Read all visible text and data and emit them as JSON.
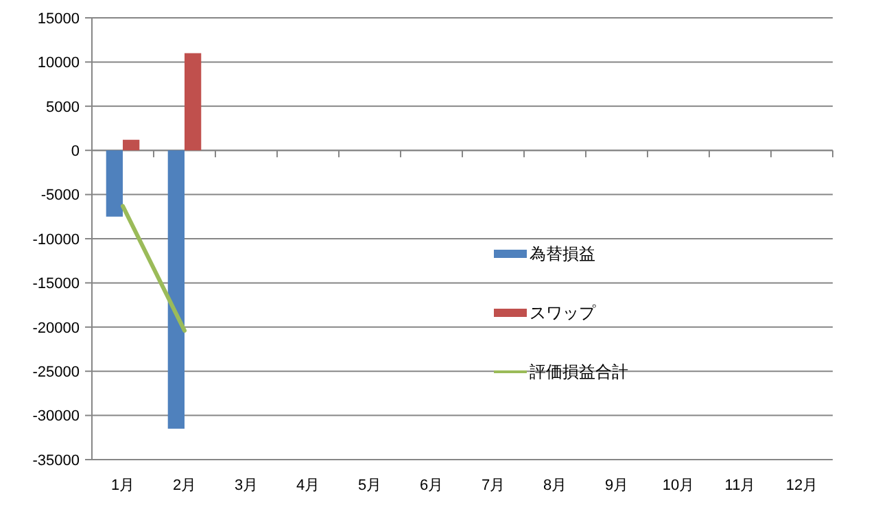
{
  "chart_data": {
    "type": "bar",
    "categories": [
      "1月",
      "2月",
      "3月",
      "4月",
      "5月",
      "6月",
      "7月",
      "8月",
      "9月",
      "10月",
      "11月",
      "12月"
    ],
    "series": [
      {
        "name": "為替損益",
        "color": "#4f81bd",
        "values": [
          -7500,
          -31500,
          null,
          null,
          null,
          null,
          null,
          null,
          null,
          null,
          null,
          null
        ]
      },
      {
        "name": "スワップ",
        "color": "#c0504d",
        "values": [
          1200,
          11000,
          null,
          null,
          null,
          null,
          null,
          null,
          null,
          null,
          null,
          null
        ]
      },
      {
        "name": "評価損益合計",
        "type": "line",
        "color": "#9bbb59",
        "values": [
          -6300,
          -20400,
          null,
          null,
          null,
          null,
          null,
          null,
          null,
          null,
          null,
          null
        ]
      }
    ],
    "ylim": [
      -35000,
      15000
    ],
    "yticks": [
      -35000,
      -30000,
      -25000,
      -20000,
      -15000,
      -10000,
      -5000,
      0,
      5000,
      10000,
      15000
    ],
    "grid": "y",
    "legend": "center"
  }
}
